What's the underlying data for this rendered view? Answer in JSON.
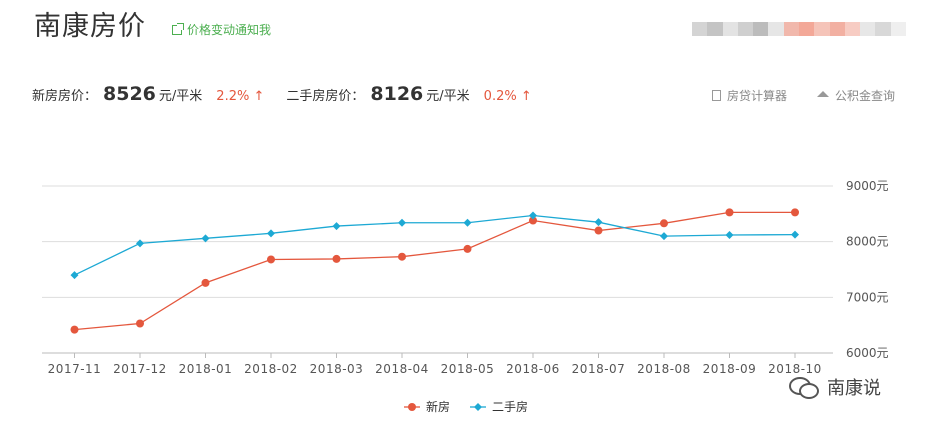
{
  "header": {
    "title": "南康房价",
    "notify_label": "价格变动通知我"
  },
  "price_row": {
    "new_label": "新房房价：",
    "new_value": "8526",
    "unit": "元/平米",
    "new_change": "2.2%",
    "second_label": "二手房房价：",
    "second_value": "8126",
    "second_change": "0.2%",
    "arrow": "↑"
  },
  "tools": {
    "calculator_label": "房贷计算器",
    "fund_label": "公积金查询"
  },
  "colors": {
    "new_house": "#e4573d",
    "second_hand": "#1da9d4",
    "change_up": "#e4573d",
    "notify": "#4caf50"
  },
  "chart_data": {
    "type": "line",
    "categories": [
      "2017-11",
      "2017-12",
      "2018-01",
      "2018-02",
      "2018-03",
      "2018-04",
      "2018-05",
      "2018-06",
      "2018-07",
      "2018-08",
      "2018-09",
      "2018-10"
    ],
    "series": [
      {
        "name": "新房",
        "color": "#e4573d",
        "marker": "circle",
        "values": [
          6420,
          6530,
          7260,
          7680,
          7690,
          7730,
          7870,
          8380,
          8200,
          8330,
          8526,
          8526
        ]
      },
      {
        "name": "二手房",
        "color": "#1da9d4",
        "marker": "diamond",
        "values": [
          7400,
          7970,
          8060,
          8150,
          8280,
          8340,
          8340,
          8470,
          8350,
          8100,
          8120,
          8126
        ]
      }
    ],
    "ylim": [
      6000,
      9000
    ],
    "yticks": [
      6000,
      7000,
      8000,
      9000
    ],
    "ytick_labels": [
      "6000元",
      "7000元",
      "8000元",
      "9000元"
    ],
    "grid": true,
    "legend": "bottom-center"
  },
  "watermark": {
    "text": "南康说",
    "icon": "wechat-icon"
  }
}
